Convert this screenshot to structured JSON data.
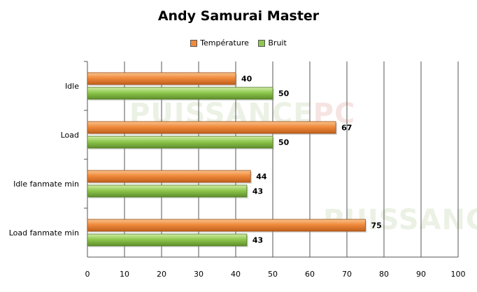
{
  "chart_data": {
    "type": "bar",
    "orientation": "horizontal",
    "title": "Andy Samurai Master",
    "categories": [
      "Idle",
      "Load",
      "Idle fanmate  min",
      "Load fanmate  min"
    ],
    "series": [
      {
        "name": "Température",
        "values": [
          40,
          67,
          44,
          75
        ],
        "color": "#f08a3c"
      },
      {
        "name": "Bruit",
        "values": [
          50,
          50,
          43,
          43
        ],
        "color": "#8fc84e"
      }
    ],
    "xlim": [
      0,
      100
    ],
    "xticks": [
      0,
      10,
      20,
      30,
      40,
      50,
      60,
      70,
      80,
      90,
      100
    ],
    "grid": true,
    "legend_position": "top",
    "data_labels": true
  },
  "watermark": {
    "text": "PUISSANCE PC"
  }
}
